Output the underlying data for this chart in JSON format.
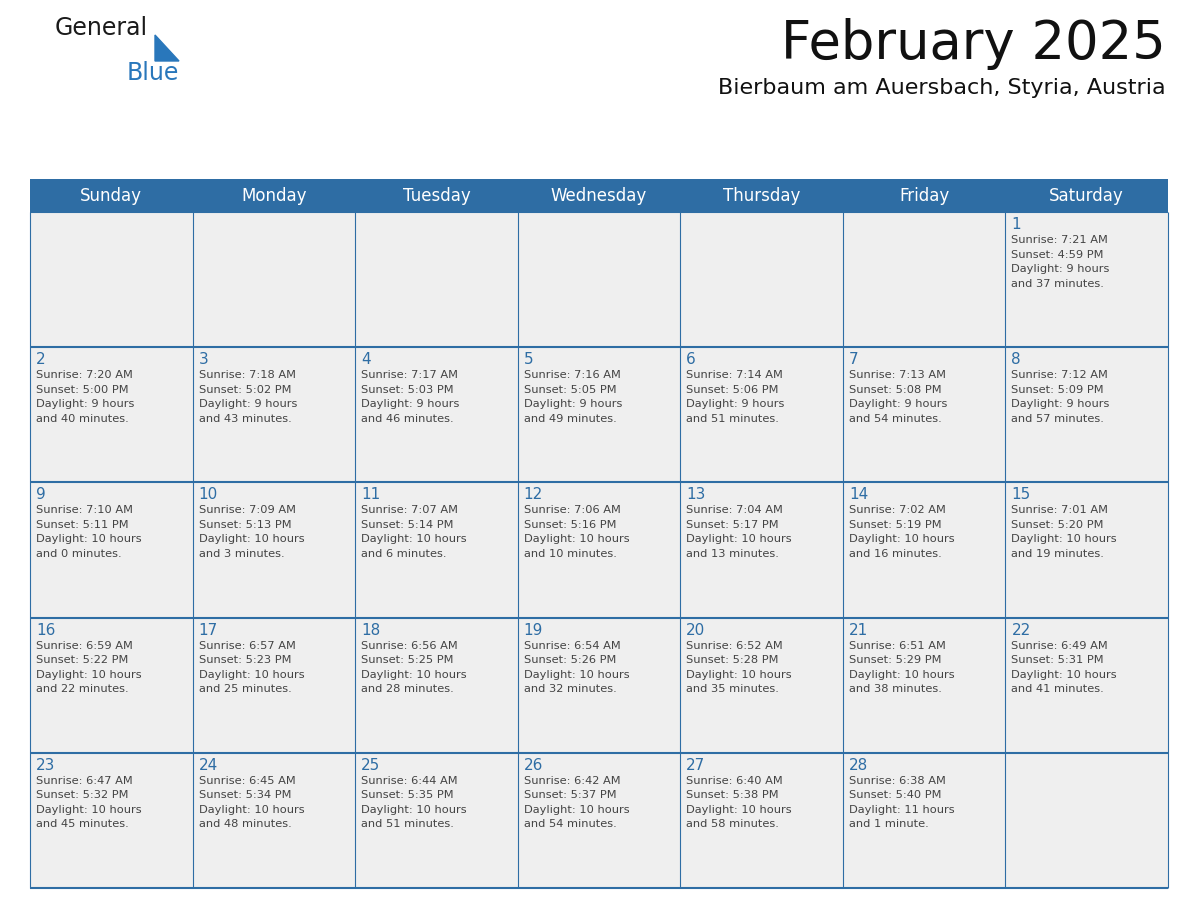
{
  "title": "February 2025",
  "subtitle": "Bierbaum am Auersbach, Styria, Austria",
  "days_of_week": [
    "Sunday",
    "Monday",
    "Tuesday",
    "Wednesday",
    "Thursday",
    "Friday",
    "Saturday"
  ],
  "header_bg": "#2E6DA4",
  "header_text": "#FFFFFF",
  "cell_bg": "#EFEFEF",
  "border_color": "#2E6DA4",
  "day_number_color": "#2E6DA4",
  "text_color": "#444444",
  "logo_general_color": "#1a1a1a",
  "logo_blue_color": "#2977BB",
  "weeks": [
    [
      {
        "day": "",
        "sunrise": "",
        "sunset": "",
        "daylight": ""
      },
      {
        "day": "",
        "sunrise": "",
        "sunset": "",
        "daylight": ""
      },
      {
        "day": "",
        "sunrise": "",
        "sunset": "",
        "daylight": ""
      },
      {
        "day": "",
        "sunrise": "",
        "sunset": "",
        "daylight": ""
      },
      {
        "day": "",
        "sunrise": "",
        "sunset": "",
        "daylight": ""
      },
      {
        "day": "",
        "sunrise": "",
        "sunset": "",
        "daylight": ""
      },
      {
        "day": "1",
        "sunrise": "Sunrise: 7:21 AM",
        "sunset": "Sunset: 4:59 PM",
        "daylight": "Daylight: 9 hours\nand 37 minutes."
      }
    ],
    [
      {
        "day": "2",
        "sunrise": "Sunrise: 7:20 AM",
        "sunset": "Sunset: 5:00 PM",
        "daylight": "Daylight: 9 hours\nand 40 minutes."
      },
      {
        "day": "3",
        "sunrise": "Sunrise: 7:18 AM",
        "sunset": "Sunset: 5:02 PM",
        "daylight": "Daylight: 9 hours\nand 43 minutes."
      },
      {
        "day": "4",
        "sunrise": "Sunrise: 7:17 AM",
        "sunset": "Sunset: 5:03 PM",
        "daylight": "Daylight: 9 hours\nand 46 minutes."
      },
      {
        "day": "5",
        "sunrise": "Sunrise: 7:16 AM",
        "sunset": "Sunset: 5:05 PM",
        "daylight": "Daylight: 9 hours\nand 49 minutes."
      },
      {
        "day": "6",
        "sunrise": "Sunrise: 7:14 AM",
        "sunset": "Sunset: 5:06 PM",
        "daylight": "Daylight: 9 hours\nand 51 minutes."
      },
      {
        "day": "7",
        "sunrise": "Sunrise: 7:13 AM",
        "sunset": "Sunset: 5:08 PM",
        "daylight": "Daylight: 9 hours\nand 54 minutes."
      },
      {
        "day": "8",
        "sunrise": "Sunrise: 7:12 AM",
        "sunset": "Sunset: 5:09 PM",
        "daylight": "Daylight: 9 hours\nand 57 minutes."
      }
    ],
    [
      {
        "day": "9",
        "sunrise": "Sunrise: 7:10 AM",
        "sunset": "Sunset: 5:11 PM",
        "daylight": "Daylight: 10 hours\nand 0 minutes."
      },
      {
        "day": "10",
        "sunrise": "Sunrise: 7:09 AM",
        "sunset": "Sunset: 5:13 PM",
        "daylight": "Daylight: 10 hours\nand 3 minutes."
      },
      {
        "day": "11",
        "sunrise": "Sunrise: 7:07 AM",
        "sunset": "Sunset: 5:14 PM",
        "daylight": "Daylight: 10 hours\nand 6 minutes."
      },
      {
        "day": "12",
        "sunrise": "Sunrise: 7:06 AM",
        "sunset": "Sunset: 5:16 PM",
        "daylight": "Daylight: 10 hours\nand 10 minutes."
      },
      {
        "day": "13",
        "sunrise": "Sunrise: 7:04 AM",
        "sunset": "Sunset: 5:17 PM",
        "daylight": "Daylight: 10 hours\nand 13 minutes."
      },
      {
        "day": "14",
        "sunrise": "Sunrise: 7:02 AM",
        "sunset": "Sunset: 5:19 PM",
        "daylight": "Daylight: 10 hours\nand 16 minutes."
      },
      {
        "day": "15",
        "sunrise": "Sunrise: 7:01 AM",
        "sunset": "Sunset: 5:20 PM",
        "daylight": "Daylight: 10 hours\nand 19 minutes."
      }
    ],
    [
      {
        "day": "16",
        "sunrise": "Sunrise: 6:59 AM",
        "sunset": "Sunset: 5:22 PM",
        "daylight": "Daylight: 10 hours\nand 22 minutes."
      },
      {
        "day": "17",
        "sunrise": "Sunrise: 6:57 AM",
        "sunset": "Sunset: 5:23 PM",
        "daylight": "Daylight: 10 hours\nand 25 minutes."
      },
      {
        "day": "18",
        "sunrise": "Sunrise: 6:56 AM",
        "sunset": "Sunset: 5:25 PM",
        "daylight": "Daylight: 10 hours\nand 28 minutes."
      },
      {
        "day": "19",
        "sunrise": "Sunrise: 6:54 AM",
        "sunset": "Sunset: 5:26 PM",
        "daylight": "Daylight: 10 hours\nand 32 minutes."
      },
      {
        "day": "20",
        "sunrise": "Sunrise: 6:52 AM",
        "sunset": "Sunset: 5:28 PM",
        "daylight": "Daylight: 10 hours\nand 35 minutes."
      },
      {
        "day": "21",
        "sunrise": "Sunrise: 6:51 AM",
        "sunset": "Sunset: 5:29 PM",
        "daylight": "Daylight: 10 hours\nand 38 minutes."
      },
      {
        "day": "22",
        "sunrise": "Sunrise: 6:49 AM",
        "sunset": "Sunset: 5:31 PM",
        "daylight": "Daylight: 10 hours\nand 41 minutes."
      }
    ],
    [
      {
        "day": "23",
        "sunrise": "Sunrise: 6:47 AM",
        "sunset": "Sunset: 5:32 PM",
        "daylight": "Daylight: 10 hours\nand 45 minutes."
      },
      {
        "day": "24",
        "sunrise": "Sunrise: 6:45 AM",
        "sunset": "Sunset: 5:34 PM",
        "daylight": "Daylight: 10 hours\nand 48 minutes."
      },
      {
        "day": "25",
        "sunrise": "Sunrise: 6:44 AM",
        "sunset": "Sunset: 5:35 PM",
        "daylight": "Daylight: 10 hours\nand 51 minutes."
      },
      {
        "day": "26",
        "sunrise": "Sunrise: 6:42 AM",
        "sunset": "Sunset: 5:37 PM",
        "daylight": "Daylight: 10 hours\nand 54 minutes."
      },
      {
        "day": "27",
        "sunrise": "Sunrise: 6:40 AM",
        "sunset": "Sunset: 5:38 PM",
        "daylight": "Daylight: 10 hours\nand 58 minutes."
      },
      {
        "day": "28",
        "sunrise": "Sunrise: 6:38 AM",
        "sunset": "Sunset: 5:40 PM",
        "daylight": "Daylight: 11 hours\nand 1 minute."
      },
      {
        "day": "",
        "sunrise": "",
        "sunset": "",
        "daylight": ""
      }
    ]
  ]
}
